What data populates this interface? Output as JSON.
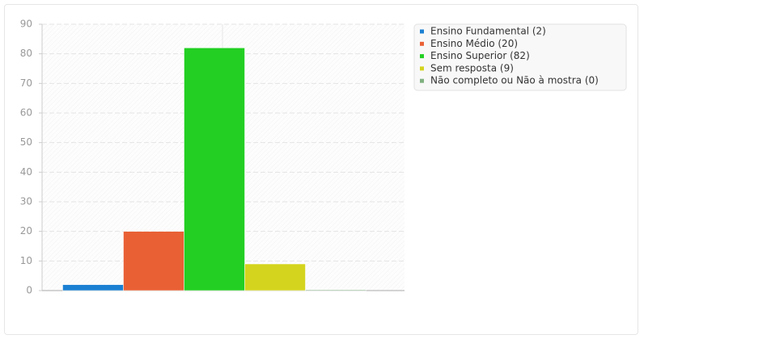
{
  "chart_data": {
    "type": "bar",
    "categories": [
      null
    ],
    "series": [
      {
        "name": "Ensino Fundamental (2)",
        "color": "#1b80d2",
        "values": [
          2
        ]
      },
      {
        "name": "Ensino Médio (20)",
        "color": "#e96035",
        "values": [
          20
        ]
      },
      {
        "name": "Ensino Superior (82)",
        "color": "#22cf22",
        "values": [
          82
        ]
      },
      {
        "name": "Sem resposta (9)",
        "color": "#d4d41e",
        "values": [
          9
        ]
      },
      {
        "name": "Não completo ou Não à mostra (0)",
        "color": "#80b080",
        "values": [
          0
        ]
      }
    ],
    "ylim": [
      0,
      90
    ],
    "yticks": [
      0,
      10,
      20,
      30,
      40,
      50,
      60,
      70,
      80,
      90
    ],
    "grid": true,
    "legend": "right"
  }
}
